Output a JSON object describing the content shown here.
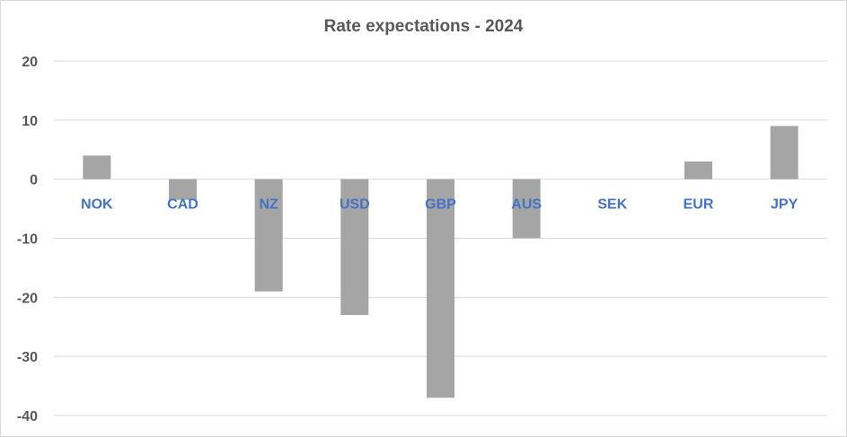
{
  "chart_data": {
    "type": "bar",
    "title": "Rate expectations - 2024",
    "xlabel": "",
    "ylabel": "",
    "categories": [
      "NOK",
      "CAD",
      "NZ",
      "USD",
      "GBP",
      "AUS",
      "SEK",
      "EUR",
      "JPY"
    ],
    "values": [
      4,
      -3.5,
      -19,
      -23,
      -37,
      -10,
      0,
      3,
      9
    ],
    "ylim": [
      -40,
      20
    ],
    "yticks": [
      20,
      10,
      0,
      -10,
      -20,
      -30,
      -40
    ],
    "grid": true,
    "legend": "none",
    "bar_color": "#a5a5a5",
    "category_label_color": "#4472c4",
    "gridline_color": "#d9d9d9"
  }
}
